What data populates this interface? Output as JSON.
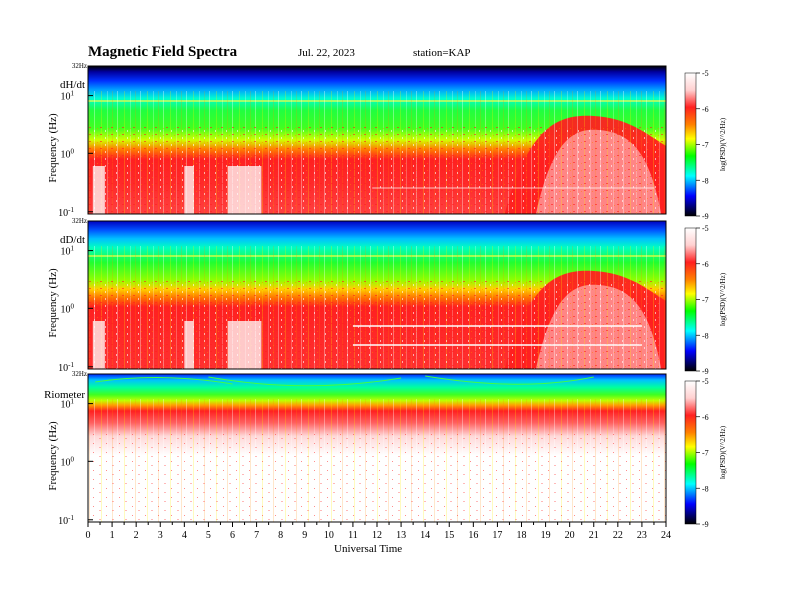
{
  "header": {
    "title": "Magnetic  Field  Spectra",
    "date": "Jul.  22, 2023",
    "station": "station=KAP"
  },
  "colorbar": {
    "label": "log(PSD)(V^2/Hz)",
    "ticks": [
      "-5",
      "-6",
      "-7",
      "-8",
      "-9"
    ],
    "colors": [
      "#ffffff",
      "#ff2020",
      "#ff8000",
      "#ffff00",
      "#00ff00",
      "#00ffff",
      "#0000ff",
      "#000000"
    ]
  },
  "xaxis": {
    "label": "Universal Time",
    "ticks": [
      "0",
      "1",
      "2",
      "3",
      "4",
      "5",
      "6",
      "7",
      "8",
      "9",
      "10",
      "11",
      "12",
      "13",
      "14",
      "15",
      "16",
      "17",
      "18",
      "19",
      "20",
      "21",
      "22",
      "23",
      "24"
    ]
  },
  "chart_data": [
    {
      "type": "heatmap",
      "panel": "dH/dt",
      "title": "Magnetic  Field  Spectra",
      "xlabel": "Universal Time",
      "ylabel": "Frequency  (Hz)",
      "yscale": "log",
      "ytick_labels": [
        "32Hz",
        "10^1",
        "10^0",
        "10^-1"
      ],
      "xlim": [
        0,
        24
      ],
      "colorbar_label": "log(PSD)(V^2/Hz)",
      "zlim": [
        -9,
        -5
      ]
    },
    {
      "type": "heatmap",
      "panel": "dD/dt",
      "xlabel": "Universal Time",
      "ylabel": "Frequency  (Hz)",
      "yscale": "log",
      "ytick_labels": [
        "32Hz",
        "10^1",
        "10^0",
        "10^-1"
      ],
      "xlim": [
        0,
        24
      ],
      "colorbar_label": "log(PSD)(V^2/Hz)",
      "zlim": [
        -9,
        -5
      ]
    },
    {
      "type": "heatmap",
      "panel": "Riometer",
      "xlabel": "Universal Time",
      "ylabel": "Frequency  (Hz)",
      "yscale": "log",
      "ytick_labels": [
        "32Hz",
        "10^1",
        "10^0",
        "10^-1"
      ],
      "xlim": [
        0,
        24
      ],
      "colorbar_label": "log(PSD)(V^2/Hz)",
      "zlim": [
        -9,
        -5
      ]
    }
  ],
  "panels": [
    {
      "name": "dH/dt",
      "ylabel": "Frequency  (Hz)",
      "top_label": "32Hz",
      "ytick_major": "10",
      "ytick_exps": [
        "1",
        "0",
        "-1"
      ]
    },
    {
      "name": "dD/dt",
      "ylabel": "Frequency  (Hz)",
      "top_label": "32Hz",
      "ytick_major": "10",
      "ytick_exps": [
        "1",
        "0",
        "-1"
      ]
    },
    {
      "name": "Riometer",
      "ylabel": "Frequency  (Hz)",
      "top_label": "32Hz",
      "ytick_major": "10",
      "ytick_exps": [
        "1",
        "0",
        "-1"
      ]
    }
  ]
}
